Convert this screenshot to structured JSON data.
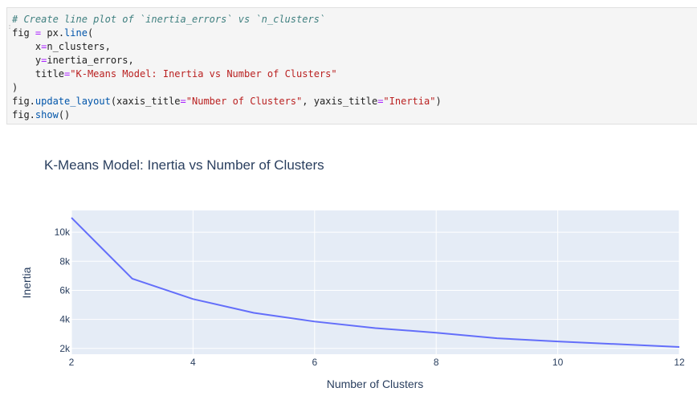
{
  "code_cell": {
    "lines": [
      [
        {
          "t": "# Create line plot of `inertia_errors` vs `n_clusters`",
          "c": "comment"
        }
      ],
      [
        {
          "t": "fig "
        },
        {
          "t": "=",
          "c": "op"
        },
        {
          "t": " px."
        },
        {
          "t": "line",
          "c": "fn"
        },
        {
          "t": "("
        }
      ],
      [
        {
          "t": "    x"
        },
        {
          "t": "=",
          "c": "op"
        },
        {
          "t": "n_clusters,"
        }
      ],
      [
        {
          "t": "    y"
        },
        {
          "t": "=",
          "c": "op"
        },
        {
          "t": "inertia_errors,"
        }
      ],
      [
        {
          "t": "    title"
        },
        {
          "t": "=",
          "c": "op"
        },
        {
          "t": "\"K-Means Model: Inertia vs Number of Clusters\"",
          "c": "str"
        }
      ],
      [
        {
          "t": ")"
        }
      ],
      [
        {
          "t": "fig."
        },
        {
          "t": "update_layout",
          "c": "fn"
        },
        {
          "t": "(xaxis_title"
        },
        {
          "t": "=",
          "c": "op"
        },
        {
          "t": "\"Number of Clusters\"",
          "c": "str"
        },
        {
          "t": ", yaxis_title"
        },
        {
          "t": "=",
          "c": "op"
        },
        {
          "t": "\"Inertia\"",
          "c": "str"
        },
        {
          "t": ")"
        }
      ],
      [
        {
          "t": "fig."
        },
        {
          "t": "show",
          "c": "fn"
        },
        {
          "t": "()"
        }
      ]
    ]
  },
  "chart_data": {
    "type": "line",
    "title": "K-Means Model: Inertia vs Number of Clusters",
    "xlabel": "Number of Clusters",
    "ylabel": "Inertia",
    "x": [
      2,
      3,
      4,
      5,
      6,
      7,
      8,
      9,
      10,
      11,
      12
    ],
    "series": [
      {
        "values": [
          11000,
          6800,
          5400,
          4450,
          3850,
          3400,
          3080,
          2700,
          2480,
          2290,
          2100
        ]
      }
    ],
    "xlim": [
      2,
      12
    ],
    "ylim": [
      1600,
      11500
    ],
    "x_ticks": [
      2,
      4,
      6,
      8,
      10,
      12
    ],
    "x_tick_labels": [
      "2",
      "4",
      "6",
      "8",
      "10",
      "12"
    ],
    "y_ticks": [
      2000,
      4000,
      6000,
      8000,
      10000
    ],
    "y_tick_labels": [
      "2k",
      "4k",
      "6k",
      "8k",
      "10k"
    ],
    "grid": true,
    "colors": {
      "line": "#636efa",
      "plot_bg": "#e5ecf6",
      "grid": "#ffffff",
      "text": "#2a3f5f"
    }
  }
}
